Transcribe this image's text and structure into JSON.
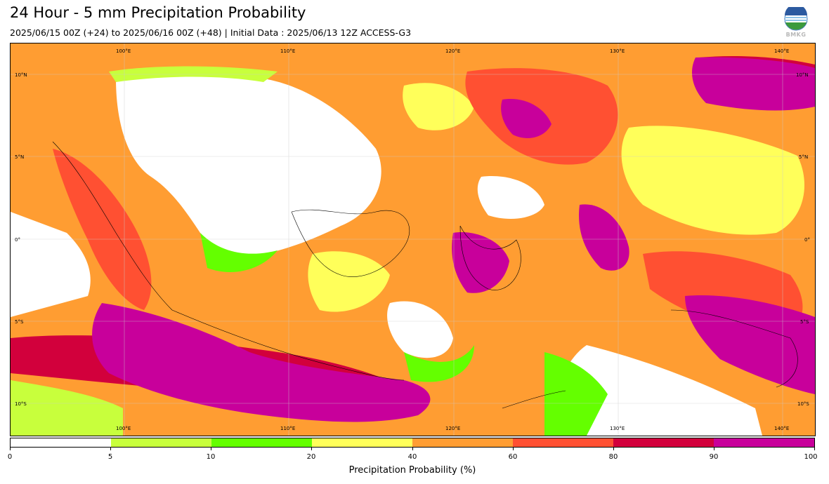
{
  "header": {
    "title": "24 Hour - 5 mm Precipitation Probability",
    "subtitle": "2025/06/15 00Z (+24) to 2025/06/16 00Z (+48) | Initial Data : 2025/06/13 12Z ACCESS-G3"
  },
  "logo": {
    "text": "BMKG",
    "icon": "bmkg-globe-icon"
  },
  "map": {
    "lon_labels_top": [
      "100°E",
      "110°E",
      "120°E",
      "130°E",
      "140°E"
    ],
    "lon_labels_bottom": [
      "100°E",
      "110°E",
      "120°E",
      "130°E",
      "140°E"
    ],
    "lat_labels_left": [
      "10°N",
      "5°N",
      "0°",
      "5°S",
      "10°S"
    ],
    "lat_labels_right": [
      "10°N",
      "5°N",
      "0°",
      "5°S",
      "10°S"
    ],
    "gridlines": true
  },
  "colorbar": {
    "title": "Precipitation Probability (%)",
    "ticks": [
      "0",
      "5",
      "10",
      "20",
      "40",
      "60",
      "80",
      "90",
      "100"
    ],
    "colors": [
      "#ffffff",
      "#c8ff3c",
      "#64ff00",
      "#ffff5a",
      "#ff9d32",
      "#ff5032",
      "#d2003c",
      "#c8009b"
    ]
  }
}
